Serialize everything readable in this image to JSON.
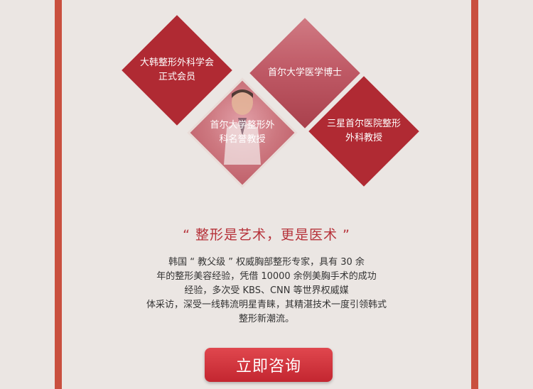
{
  "badges": [
    {
      "label": "大韩整形外科学会\n正式会员"
    },
    {
      "label": "首尔大学医学博士"
    },
    {
      "label": "首尔大学整形外\n科名誉教授"
    },
    {
      "label": "三星首尔医院整形\n外科教授"
    }
  ],
  "quote": {
    "title": "“ 整形是艺术，更是医术 ”"
  },
  "description": {
    "lines": [
      "韩国 “ 教父级 ” 权威胸部整形专家，具有 30 余",
      "年的整形美容经验，凭借 10000 余例美胸手术的成功",
      "经验，多次受 KBS、CNN 等世界权威媒",
      "体采访，深受一线韩流明星青睐，其精湛技术一度引领韩式",
      "整形新潮流。"
    ]
  },
  "cta": {
    "label": "立即咨询"
  },
  "colors": {
    "accent": "#b02a33",
    "frame": "#c9503f",
    "background": "#ebe6e3"
  }
}
